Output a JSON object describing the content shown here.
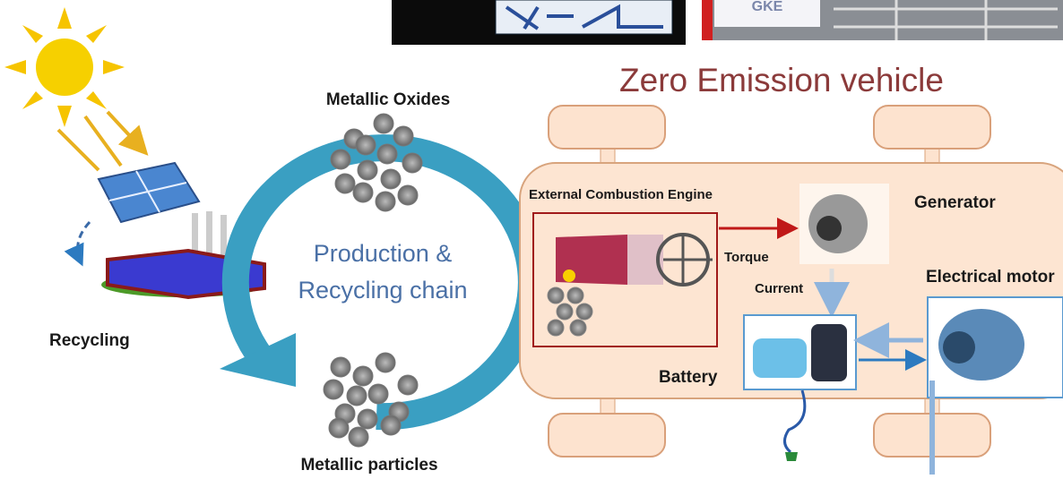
{
  "logos": [
    "GKE"
  ],
  "left": {
    "top_label": "Metallic Oxides",
    "center_line1": "Production &",
    "center_line2": "Recycling chain",
    "side_label": "Recycling",
    "bottom_label": "Metallic particles"
  },
  "vehicle": {
    "title": "Zero Emission vehicle",
    "engine": "External Combustion Engine",
    "torque": "Torque",
    "generator": "Generator",
    "current": "Current",
    "motor": "Electrical motor",
    "battery": "Battery"
  }
}
